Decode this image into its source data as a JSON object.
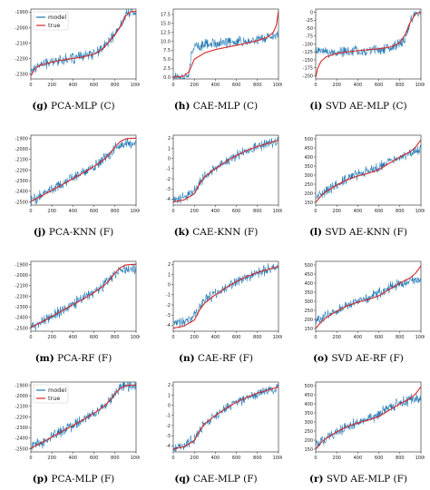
{
  "chart_data": [
    {
      "panel": "g",
      "caption_id": "(g)",
      "caption_text": "PCA-MLP (C)",
      "type": "line",
      "legend": [
        "model",
        "true"
      ],
      "legend_position": "top-left",
      "x_ticks": [
        0,
        200,
        400,
        600,
        800,
        1000
      ],
      "y_ticks": [
        -2300,
        -2200,
        -2100,
        -2000,
        -1900
      ],
      "xlim": [
        0,
        1000
      ],
      "ylim": [
        -2330,
        -1880
      ],
      "series": [
        {
          "name": "model",
          "x": [
            0,
            50,
            100,
            200,
            300,
            400,
            500,
            600,
            650,
            700,
            750,
            800,
            850,
            900,
            950,
            1000
          ],
          "y": [
            -2280,
            -2250,
            -2235,
            -2220,
            -2205,
            -2195,
            -2185,
            -2165,
            -2150,
            -2120,
            -2080,
            -2040,
            -1990,
            -1920,
            -1895,
            -1893
          ]
        },
        {
          "name": "true",
          "x": [
            0,
            50,
            100,
            200,
            300,
            400,
            500,
            600,
            650,
            700,
            750,
            800,
            850,
            900,
            950,
            1000
          ],
          "y": [
            -2310,
            -2255,
            -2240,
            -2222,
            -2208,
            -2198,
            -2188,
            -2170,
            -2152,
            -2125,
            -2085,
            -2045,
            -1995,
            -1925,
            -1897,
            -1894
          ]
        }
      ]
    },
    {
      "panel": "h",
      "caption_id": "(h)",
      "caption_text": "CAE-MLP (C)",
      "type": "line",
      "x_ticks": [
        0,
        200,
        400,
        600,
        800,
        1000
      ],
      "y_ticks": [
        0.0,
        2.5,
        5.0,
        7.5,
        10.0,
        12.5,
        15.0,
        17.5
      ],
      "y_tick_labels": [
        "0.0",
        "2.5",
        "5.0",
        "7.5",
        "10.0",
        "12.5",
        "15.0",
        "17.5"
      ],
      "xlim": [
        0,
        1000
      ],
      "ylim": [
        -0.5,
        19
      ],
      "series": [
        {
          "name": "model",
          "x": [
            0,
            50,
            100,
            150,
            170,
            200,
            300,
            400,
            500,
            600,
            700,
            800,
            900,
            950,
            1000
          ],
          "y": [
            0.0,
            0.1,
            0.3,
            0.5,
            6.0,
            8.5,
            9.0,
            9.3,
            9.6,
            9.9,
            10.2,
            10.6,
            11.0,
            11.3,
            11.5
          ]
        },
        {
          "name": "true",
          "x": [
            0,
            100,
            150,
            200,
            300,
            400,
            500,
            600,
            700,
            800,
            900,
            950,
            980,
            1000
          ],
          "y": [
            0.0,
            0.3,
            1.5,
            5.0,
            6.8,
            7.7,
            8.3,
            8.9,
            9.5,
            10.2,
            11.2,
            12.5,
            14.5,
            18.5
          ]
        }
      ]
    },
    {
      "panel": "i",
      "caption_id": "(i)",
      "caption_text": "SVD AE-MLP (C)",
      "type": "line",
      "x_ticks": [
        0,
        200,
        400,
        600,
        800,
        1000
      ],
      "y_ticks": [
        -200,
        -175,
        -150,
        -125,
        -100,
        -75,
        -50,
        -25,
        0
      ],
      "xlim": [
        0,
        1000
      ],
      "ylim": [
        -210,
        10
      ],
      "series": [
        {
          "name": "model",
          "x": [
            0,
            100,
            200,
            300,
            400,
            500,
            600,
            700,
            750,
            800,
            850,
            880,
            900,
            950,
            1000
          ],
          "y": [
            -120,
            -125,
            -128,
            -125,
            -122,
            -120,
            -118,
            -115,
            -110,
            -100,
            -85,
            -60,
            -30,
            -5,
            0
          ]
        },
        {
          "name": "true",
          "x": [
            0,
            20,
            50,
            100,
            200,
            300,
            400,
            500,
            600,
            700,
            750,
            800,
            850,
            900,
            950,
            1000
          ],
          "y": [
            -205,
            -175,
            -155,
            -140,
            -130,
            -125,
            -121,
            -118,
            -115,
            -110,
            -105,
            -95,
            -70,
            -30,
            -5,
            0
          ]
        }
      ]
    },
    {
      "panel": "j",
      "caption_id": "(j)",
      "caption_text": "PCA-KNN (F)",
      "type": "line",
      "x_ticks": [
        0,
        200,
        400,
        600,
        800,
        1000
      ],
      "y_ticks": [
        -2500,
        -2400,
        -2300,
        -2200,
        -2100,
        -2000,
        -1900
      ],
      "xlim": [
        0,
        1000
      ],
      "ylim": [
        -2530,
        -1870
      ],
      "series": [
        {
          "name": "model",
          "x": [
            0,
            100,
            200,
            300,
            400,
            500,
            600,
            700,
            750,
            800,
            850,
            900,
            950,
            1000
          ],
          "y": [
            -2490,
            -2440,
            -2385,
            -2330,
            -2275,
            -2220,
            -2160,
            -2090,
            -2040,
            -1980,
            -1960,
            -1950,
            -1945,
            -1945
          ]
        },
        {
          "name": "true",
          "x": [
            0,
            100,
            200,
            300,
            400,
            500,
            600,
            700,
            750,
            800,
            850,
            900,
            950,
            1000
          ],
          "y": [
            -2495,
            -2445,
            -2390,
            -2335,
            -2280,
            -2225,
            -2165,
            -2095,
            -2045,
            -1980,
            -1930,
            -1905,
            -1900,
            -1898
          ]
        }
      ]
    },
    {
      "panel": "k",
      "caption_id": "(k)",
      "caption_text": "CAE-KNN (F)",
      "type": "line",
      "x_ticks": [
        0,
        200,
        400,
        600,
        800,
        1000
      ],
      "y_ticks": [
        -4,
        -3,
        -2,
        -1,
        0,
        1,
        2
      ],
      "xlim": [
        0,
        1000
      ],
      "ylim": [
        -4.6,
        2.3
      ],
      "series": [
        {
          "name": "model",
          "x": [
            0,
            100,
            200,
            250,
            300,
            400,
            500,
            600,
            700,
            800,
            900,
            1000
          ],
          "y": [
            -4.0,
            -3.8,
            -3.2,
            -2.4,
            -1.7,
            -0.9,
            -0.3,
            0.3,
            0.8,
            1.2,
            1.5,
            1.8
          ]
        },
        {
          "name": "true",
          "x": [
            0,
            100,
            200,
            250,
            300,
            400,
            500,
            600,
            700,
            800,
            900,
            1000
          ],
          "y": [
            -4.3,
            -4.1,
            -3.5,
            -2.5,
            -1.8,
            -1.0,
            -0.3,
            0.3,
            0.8,
            1.2,
            1.5,
            1.8
          ]
        }
      ]
    },
    {
      "panel": "l",
      "caption_id": "(l)",
      "caption_text": "SVD AE-KNN (F)",
      "type": "line",
      "x_ticks": [
        0,
        200,
        400,
        600,
        800,
        1000
      ],
      "y_ticks": [
        150,
        200,
        250,
        300,
        350,
        400,
        450,
        500
      ],
      "xlim": [
        0,
        1000
      ],
      "ylim": [
        135,
        520
      ],
      "series": [
        {
          "name": "model",
          "x": [
            0,
            100,
            200,
            300,
            400,
            500,
            600,
            700,
            800,
            900,
            1000
          ],
          "y": [
            175,
            215,
            245,
            280,
            305,
            320,
            345,
            380,
            400,
            420,
            440
          ]
        },
        {
          "name": "true",
          "x": [
            0,
            50,
            100,
            200,
            300,
            400,
            500,
            600,
            700,
            800,
            900,
            950,
            1000
          ],
          "y": [
            150,
            185,
            210,
            245,
            275,
            295,
            310,
            330,
            365,
            400,
            430,
            455,
            495
          ]
        }
      ]
    },
    {
      "panel": "m",
      "caption_id": "(m)",
      "caption_text": "PCA-RF (F)",
      "type": "line",
      "x_ticks": [
        0,
        200,
        400,
        600,
        800,
        1000
      ],
      "y_ticks": [
        -2500,
        -2400,
        -2300,
        -2200,
        -2100,
        -2000,
        -1900
      ],
      "xlim": [
        0,
        1000
      ],
      "ylim": [
        -2530,
        -1870
      ],
      "series": [
        {
          "name": "model",
          "x": [
            0,
            100,
            200,
            300,
            400,
            500,
            600,
            700,
            750,
            800,
            850,
            900,
            950,
            1000
          ],
          "y": [
            -2490,
            -2440,
            -2385,
            -2330,
            -2275,
            -2220,
            -2160,
            -2090,
            -2040,
            -1985,
            -1960,
            -1945,
            -1940,
            -1940
          ]
        },
        {
          "name": "true",
          "x": [
            0,
            100,
            200,
            300,
            400,
            500,
            600,
            700,
            750,
            800,
            850,
            900,
            950,
            1000
          ],
          "y": [
            -2495,
            -2445,
            -2390,
            -2335,
            -2280,
            -2225,
            -2165,
            -2095,
            -2045,
            -1980,
            -1930,
            -1905,
            -1900,
            -1898
          ]
        }
      ]
    },
    {
      "panel": "n",
      "caption_id": "(n)",
      "caption_text": "CAE-RF (F)",
      "type": "line",
      "x_ticks": [
        0,
        200,
        400,
        600,
        800,
        1000
      ],
      "y_ticks": [
        -4,
        -3,
        -2,
        -1,
        0,
        1,
        2
      ],
      "xlim": [
        0,
        1000
      ],
      "ylim": [
        -4.6,
        2.3
      ],
      "series": [
        {
          "name": "model",
          "x": [
            0,
            100,
            200,
            250,
            300,
            400,
            500,
            600,
            700,
            800,
            900,
            1000
          ],
          "y": [
            -3.9,
            -3.7,
            -3.1,
            -2.3,
            -1.6,
            -0.9,
            -0.3,
            0.3,
            0.8,
            1.2,
            1.5,
            1.8
          ]
        },
        {
          "name": "true",
          "x": [
            0,
            100,
            200,
            250,
            300,
            400,
            500,
            600,
            700,
            800,
            900,
            1000
          ],
          "y": [
            -4.3,
            -4.1,
            -3.5,
            -2.5,
            -1.8,
            -1.0,
            -0.3,
            0.3,
            0.8,
            1.2,
            1.5,
            1.8
          ]
        }
      ]
    },
    {
      "panel": "o",
      "caption_id": "(o)",
      "caption_text": "SVD AE-RF (F)",
      "type": "line",
      "x_ticks": [
        0,
        200,
        400,
        600,
        800,
        1000
      ],
      "y_ticks": [
        150,
        200,
        250,
        300,
        350,
        400,
        450,
        500
      ],
      "xlim": [
        0,
        1000
      ],
      "ylim": [
        135,
        520
      ],
      "series": [
        {
          "name": "model",
          "x": [
            0,
            100,
            200,
            300,
            400,
            500,
            600,
            700,
            800,
            900,
            1000
          ],
          "y": [
            190,
            220,
            245,
            275,
            300,
            318,
            345,
            375,
            395,
            410,
            420
          ]
        },
        {
          "name": "true",
          "x": [
            0,
            50,
            100,
            200,
            300,
            400,
            500,
            600,
            700,
            800,
            900,
            950,
            1000
          ],
          "y": [
            150,
            185,
            210,
            245,
            275,
            295,
            310,
            330,
            365,
            400,
            430,
            455,
            495
          ]
        }
      ]
    },
    {
      "panel": "p",
      "caption_id": "(p)",
      "caption_text": "PCA-MLP (F)",
      "type": "line",
      "legend": [
        "model",
        "true"
      ],
      "legend_position": "top-left",
      "x_ticks": [
        0,
        200,
        400,
        600,
        800,
        1000
      ],
      "y_ticks": [
        -2500,
        -2400,
        -2300,
        -2200,
        -2100,
        -2000,
        -1900
      ],
      "xlim": [
        0,
        1000
      ],
      "ylim": [
        -2530,
        -1870
      ],
      "series": [
        {
          "name": "model",
          "x": [
            0,
            100,
            200,
            300,
            400,
            500,
            600,
            700,
            750,
            800,
            850,
            900,
            950,
            1000
          ],
          "y": [
            -2490,
            -2442,
            -2388,
            -2332,
            -2277,
            -2222,
            -2162,
            -2092,
            -2042,
            -1982,
            -1935,
            -1915,
            -1905,
            -1903
          ]
        },
        {
          "name": "true",
          "x": [
            0,
            100,
            200,
            300,
            400,
            500,
            600,
            700,
            750,
            800,
            850,
            900,
            950,
            1000
          ],
          "y": [
            -2495,
            -2445,
            -2390,
            -2335,
            -2280,
            -2225,
            -2165,
            -2095,
            -2045,
            -1980,
            -1930,
            -1905,
            -1900,
            -1898
          ]
        }
      ]
    },
    {
      "panel": "q",
      "caption_id": "(q)",
      "caption_text": "CAE-MLP (F)",
      "type": "line",
      "x_ticks": [
        0,
        200,
        400,
        600,
        800,
        1000
      ],
      "y_ticks": [
        -4,
        -3,
        -2,
        -1,
        0,
        1,
        2
      ],
      "xlim": [
        0,
        1000
      ],
      "ylim": [
        -4.6,
        2.3
      ],
      "series": [
        {
          "name": "model",
          "x": [
            0,
            100,
            200,
            250,
            300,
            400,
            500,
            600,
            700,
            800,
            900,
            1000
          ],
          "y": [
            -4.2,
            -4.0,
            -3.4,
            -2.5,
            -1.8,
            -1.0,
            -0.3,
            0.3,
            0.8,
            1.2,
            1.5,
            1.8
          ]
        },
        {
          "name": "true",
          "x": [
            0,
            100,
            200,
            250,
            300,
            400,
            500,
            600,
            700,
            800,
            900,
            1000
          ],
          "y": [
            -4.3,
            -4.1,
            -3.5,
            -2.5,
            -1.8,
            -1.0,
            -0.3,
            0.3,
            0.8,
            1.2,
            1.5,
            1.8
          ]
        }
      ]
    },
    {
      "panel": "r",
      "caption_id": "(r)",
      "caption_text": "SVD AE-MLP (F)",
      "type": "line",
      "x_ticks": [
        0,
        200,
        400,
        600,
        800,
        1000
      ],
      "y_ticks": [
        150,
        200,
        250,
        300,
        350,
        400,
        450,
        500
      ],
      "xlim": [
        0,
        1000
      ],
      "ylim": [
        135,
        520
      ],
      "series": [
        {
          "name": "model",
          "x": [
            0,
            100,
            200,
            300,
            400,
            500,
            600,
            700,
            800,
            900,
            1000
          ],
          "y": [
            170,
            205,
            240,
            272,
            298,
            315,
            345,
            380,
            405,
            420,
            430
          ]
        },
        {
          "name": "true",
          "x": [
            0,
            50,
            100,
            200,
            300,
            400,
            500,
            600,
            700,
            800,
            900,
            950,
            1000
          ],
          "y": [
            150,
            185,
            210,
            245,
            275,
            295,
            310,
            330,
            365,
            400,
            430,
            455,
            495
          ]
        }
      ]
    }
  ],
  "colors": {
    "model": "#1f77b4",
    "true": "#d62728",
    "axes": "#222222"
  }
}
